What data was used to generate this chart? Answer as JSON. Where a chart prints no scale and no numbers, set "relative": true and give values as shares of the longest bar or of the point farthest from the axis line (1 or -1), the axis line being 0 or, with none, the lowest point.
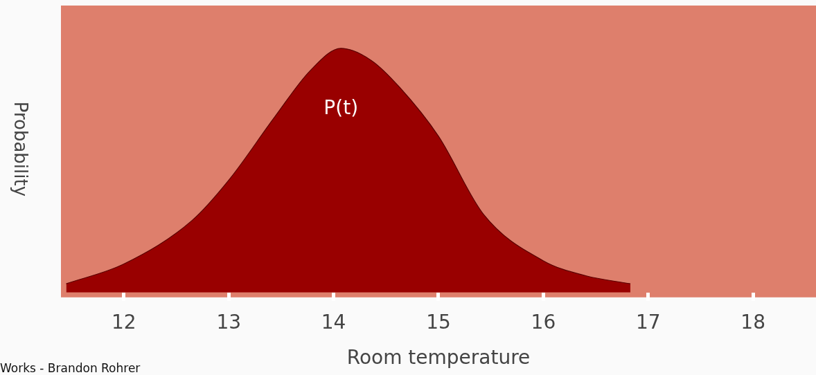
{
  "chart_data": {
    "type": "area",
    "relative": true,
    "xlabel": "Room temperature",
    "ylabel": "Probability",
    "xlim": [
      11.4,
      18.6
    ],
    "xticks": [
      12,
      13,
      14,
      15,
      16,
      17,
      18
    ],
    "grid": false,
    "legend": false,
    "series": [
      {
        "name": "P(t)",
        "color": "#990000",
        "x": [
          11.45,
          12,
          12.65,
          13,
          13.44,
          13.78,
          14.07,
          14.36,
          14.63,
          15,
          15.43,
          16,
          16.41,
          16.83
        ],
        "values": [
          0.036,
          0.117,
          0.295,
          0.46,
          0.72,
          0.91,
          1,
          0.95,
          0.84,
          0.64,
          0.32,
          0.13,
          0.068,
          0.036
        ]
      }
    ],
    "annotations": [
      "Works - Brandon Rohrer"
    ]
  }
}
